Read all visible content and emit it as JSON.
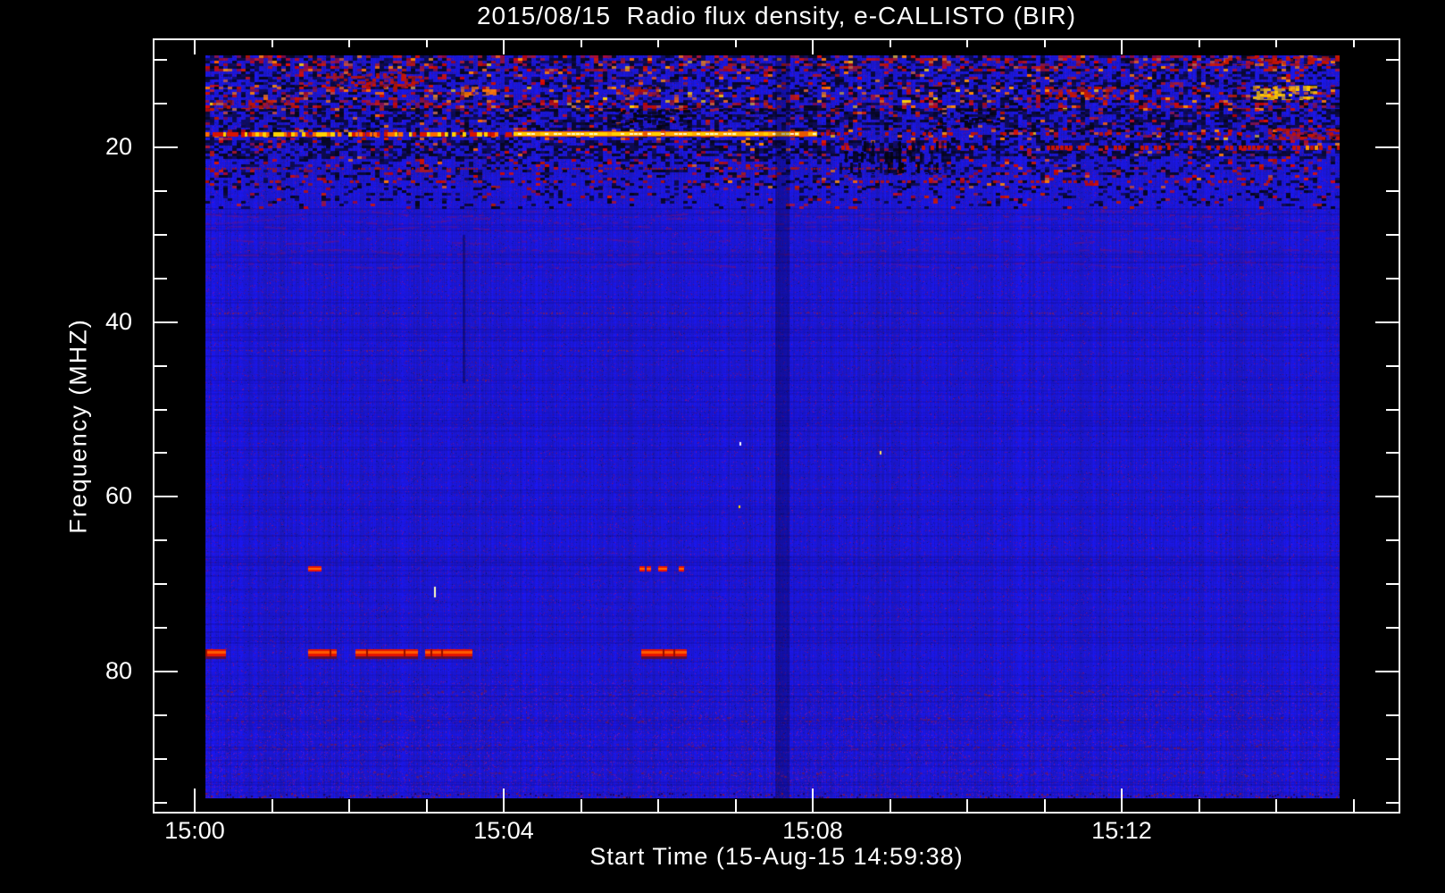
{
  "window": {
    "background": "#000000",
    "foreground": "#ffffff"
  },
  "chart_data": {
    "type": "heatmap",
    "subtype": "solar-radio-spectrogram",
    "title": "2015/08/15  Radio flux density, e-CALLISTO (BIR)",
    "xlabel": "Start Time (15-Aug-15 14:59:38)",
    "ylabel": "Frequency (MHZ)",
    "x_ticks": [
      {
        "label": "15:00",
        "min": 0
      },
      {
        "label": "15:04",
        "min": 4
      },
      {
        "label": "15:08",
        "min": 8
      },
      {
        "label": "15:12",
        "min": 12
      }
    ],
    "x_minor_ticks_min": [
      1,
      2,
      3,
      5,
      6,
      7,
      9,
      10,
      11,
      13,
      14,
      15
    ],
    "y_ticks": [
      {
        "label": "20",
        "mhz": 20
      },
      {
        "label": "40",
        "mhz": 40
      },
      {
        "label": "60",
        "mhz": 60
      },
      {
        "label": "80",
        "mhz": 80
      }
    ],
    "y_minor_ticks_mhz": [
      10,
      15,
      25,
      30,
      35,
      45,
      50,
      55,
      65,
      70,
      75,
      85,
      90,
      95
    ],
    "time_span": {
      "start_time": "14:59:38",
      "first_tick": "15:00",
      "data_minutes": [
        0.14,
        14.82
      ]
    },
    "freq_range_mhz": [
      9.5,
      94.5
    ],
    "freq_axis_inverted": true,
    "grid": false,
    "legend": "none",
    "colormap": {
      "background_blue": "#1d1dd8",
      "mottle_purple": "#5a14a0",
      "dark": "#06061a",
      "red": "#d81400",
      "orange": "#ff6a00",
      "yellow": "#ffd200",
      "peak_white": "#fffad0"
    },
    "content_summary": "Quiet-Sun dynamic spectrum: uniform blue background with striated noise; heavy broadband terrestrial RFI below ~27 MHz including a bright yellow emission line near 18.5 MHz; narrowband intermittent RFI near 68 MHz and 78 MHz; faint wavy interference 27-34 MHz.",
    "rfi_bands": [
      {
        "mhz": [
          9.5,
          11.3
        ],
        "dark": 0.3,
        "red": 0.22,
        "orange": 0.05,
        "yellow": 0.01
      },
      {
        "mhz": [
          11.3,
          13.1
        ],
        "dark": 0.34,
        "red": 0.07,
        "orange": 0.02,
        "yellow": 0.0
      },
      {
        "mhz": [
          13.1,
          14.6
        ],
        "dark": 0.28,
        "red": 0.12,
        "orange": 0.06,
        "yellow": 0.01
      },
      {
        "mhz": [
          14.6,
          15.6
        ],
        "dark": 0.3,
        "red": 0.22,
        "orange": 0.04,
        "yellow": 0.01
      },
      {
        "mhz": [
          15.6,
          18.0
        ],
        "dark": 0.45,
        "red": 0.06,
        "orange": 0.01,
        "yellow": 0.0
      },
      {
        "mhz": [
          18.0,
          19.2
        ],
        "dark": 0.25,
        "red": 0.1,
        "orange": 0.03,
        "yellow": 0.01
      },
      {
        "mhz": [
          19.2,
          21.3
        ],
        "dark": 0.5,
        "red": 0.06,
        "orange": 0.01,
        "yellow": 0.0
      },
      {
        "mhz": [
          21.3,
          23.2
        ],
        "dark": 0.22,
        "red": 0.09,
        "orange": 0.01,
        "yellow": 0.0
      },
      {
        "mhz": [
          23.2,
          24.6
        ],
        "dark": 0.18,
        "red": 0.07,
        "orange": 0.01,
        "yellow": 0.0
      },
      {
        "mhz": [
          24.6,
          27.1
        ],
        "dark": 0.14,
        "red": 0.04,
        "orange": 0.0,
        "yellow": 0.0
      }
    ],
    "blobs": [
      {
        "t": [
          1.7,
          2.95
        ],
        "mhz": [
          11.5,
          13.3
        ],
        "color": "red",
        "density": 0.45
      },
      {
        "t": [
          3.4,
          3.9
        ],
        "mhz": [
          13.1,
          14.1
        ],
        "color": "orange",
        "density": 0.5
      },
      {
        "t": [
          5.5,
          6.0
        ],
        "mhz": [
          13.0,
          14.2
        ],
        "color": "red",
        "density": 0.4
      },
      {
        "t": [
          11.0,
          12.05
        ],
        "mhz": [
          13.1,
          14.5
        ],
        "color": "red",
        "density": 0.4
      },
      {
        "t": [
          13.7,
          14.5
        ],
        "mhz": [
          12.9,
          14.6
        ],
        "color": "yellow",
        "density": 0.55
      },
      {
        "t": [
          13.2,
          14.8
        ],
        "mhz": [
          9.6,
          10.6
        ],
        "color": "red",
        "density": 0.45
      },
      {
        "t": [
          13.9,
          14.8
        ],
        "mhz": [
          17.9,
          19.2
        ],
        "color": "red",
        "density": 0.5
      },
      {
        "t": [
          0.14,
          1.3
        ],
        "mhz": [
          14.6,
          15.6
        ],
        "color": "red",
        "density": 0.5
      },
      {
        "t": [
          8.35,
          9.75
        ],
        "mhz": [
          19.3,
          23.1
        ],
        "color": "black",
        "density": 0.3,
        "streak": true
      },
      {
        "t": [
          5.4,
          6.4
        ],
        "mhz": [
          15.7,
          18.0
        ],
        "color": "black",
        "density": 0.35
      },
      {
        "t": [
          9.6,
          10.4
        ],
        "mhz": [
          15.7,
          17.9
        ],
        "color": "black",
        "density": 0.3
      }
    ],
    "lines": [
      {
        "mhz": 18.5,
        "t": [
          [
            0.14,
            4.13
          ]
        ],
        "style": "dash_bright"
      },
      {
        "mhz": 18.5,
        "t": [
          [
            4.13,
            8.06
          ]
        ],
        "style": "solid_yellow"
      },
      {
        "mhz": 18.5,
        "t": [
          [
            8.1,
            14.82
          ]
        ],
        "style": "dash_sparse_red"
      },
      {
        "mhz": 20.0,
        "t": [
          [
            8.2,
            14.82
          ]
        ],
        "style": "dash_ramp_red"
      },
      {
        "mhz": 22.5,
        "t": [
          [
            0.14,
            9.7
          ]
        ],
        "style": "dot_red"
      },
      {
        "mhz": 23.9,
        "t": [
          [
            0.14,
            14.82
          ]
        ],
        "style": "dash_sparse_red2"
      },
      {
        "mhz": 38.9,
        "t": [
          [
            0.14,
            14.82
          ]
        ],
        "style": "dot_faint"
      },
      {
        "mhz": 43.2,
        "t": [
          [
            0.14,
            7.3
          ]
        ],
        "style": "dot_faint"
      },
      {
        "mhz": 46.6,
        "t": [
          [
            2.2,
            3.9
          ]
        ],
        "style": "dot_faint"
      },
      {
        "mhz": 68.2,
        "t": [
          [
            1.47,
            1.64
          ],
          [
            5.76,
            5.83
          ],
          [
            5.85,
            5.91
          ],
          [
            6.0,
            6.12
          ],
          [
            6.27,
            6.34
          ]
        ],
        "style": "dash_red"
      },
      {
        "mhz": 77.8,
        "t": [
          [
            0.14,
            0.4
          ],
          [
            1.47,
            1.84
          ],
          [
            2.08,
            2.89
          ],
          [
            2.98,
            3.6
          ],
          [
            5.78,
            6.37
          ]
        ],
        "style": "thick_red"
      }
    ],
    "waves": {
      "rows_mhz": [
        27.6,
        28.4,
        29.3,
        30.6,
        32.0,
        33.4
      ],
      "t": [
        0.14,
        14.82
      ]
    },
    "columns": [
      {
        "t": [
          7.51,
          7.7
        ],
        "alpha": 0.3
      },
      {
        "t": [
          3.47,
          3.5
        ],
        "alpha": 0.35,
        "mhz": [
          30,
          47
        ]
      }
    ],
    "sparks": [
      {
        "t": 7.05,
        "mhz": 53.9,
        "color": "#ffffff",
        "w": 2,
        "h": 4
      },
      {
        "t": 8.87,
        "mhz": 55.0,
        "color": "#ffe060",
        "w": 2,
        "h": 4
      },
      {
        "t": 7.04,
        "mhz": 61.1,
        "color": "#ffd200",
        "w": 2,
        "h": 3
      },
      {
        "t": 3.1,
        "mhz": 71.3,
        "color": "#ffffc0",
        "w": 2,
        "h": 12
      }
    ],
    "bottom_rows_mhz": [
      82.4,
      85.5,
      88.6,
      91.7
    ]
  }
}
